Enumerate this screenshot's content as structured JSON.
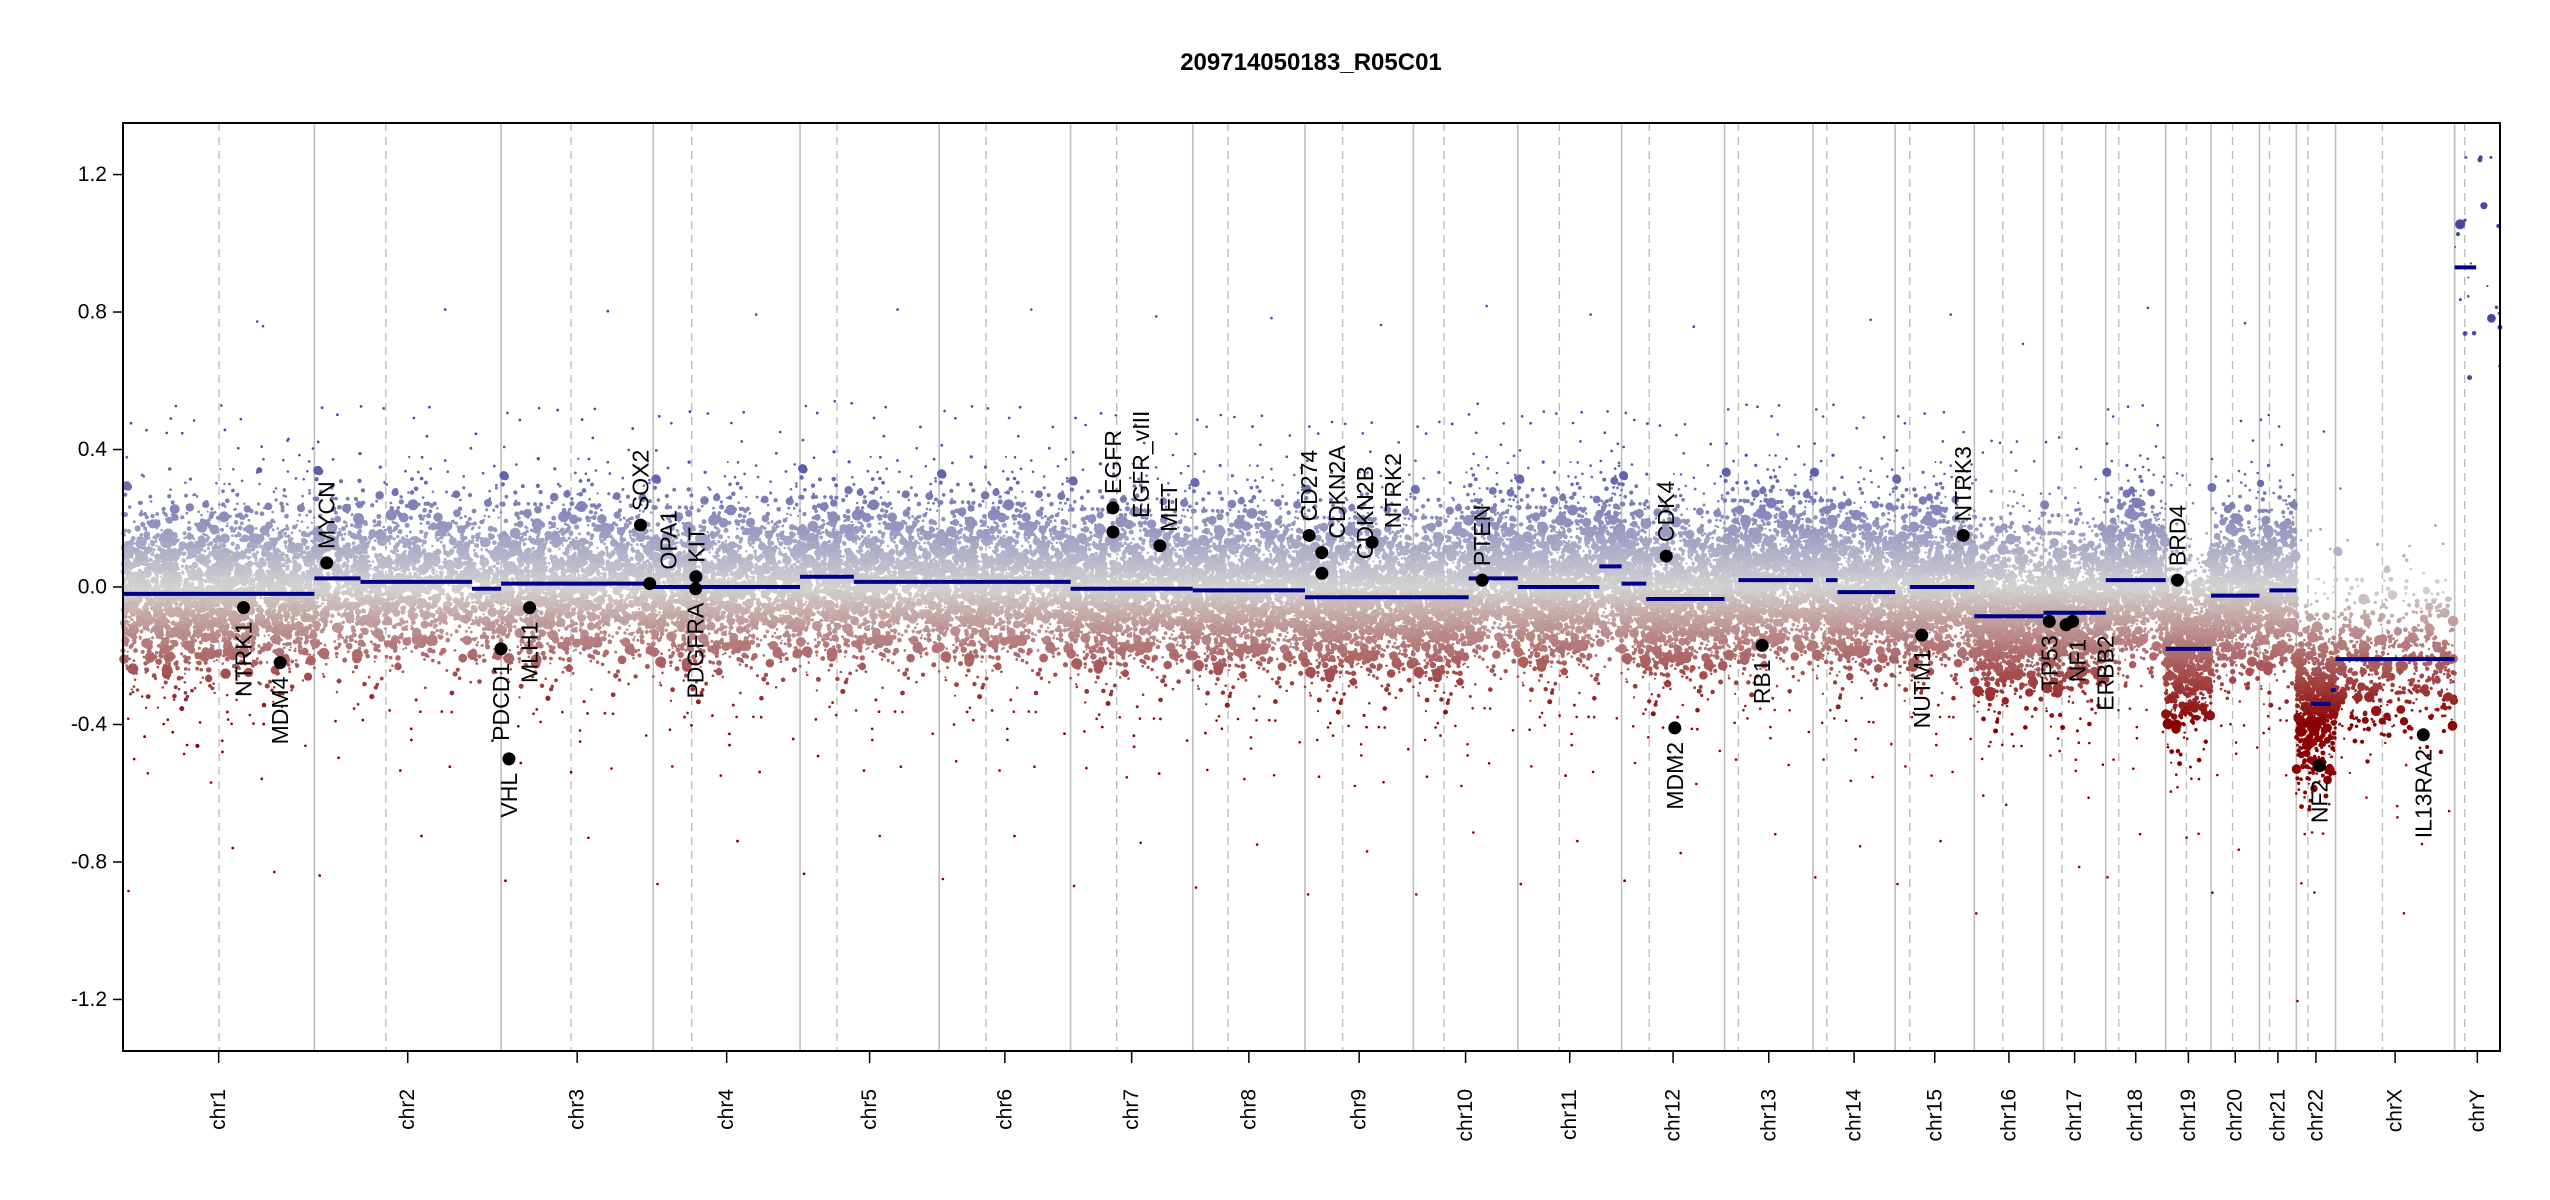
{
  "chart_data": {
    "type": "scatter",
    "title": "209714050183_R05C01",
    "xlabel": "",
    "ylabel": "",
    "ylim": [
      -1.35,
      1.35
    ],
    "yticks": [
      -1.2,
      -0.8,
      -0.4,
      0.0,
      0.4,
      0.8,
      1.2
    ],
    "ytick_labels": [
      "-1.2",
      "-0.8",
      "-0.4",
      "0.0",
      "0.4",
      "0.8",
      "1.2"
    ],
    "chromosomes": [
      {
        "name": "chr1",
        "length": 249,
        "centromere": 125
      },
      {
        "name": "chr2",
        "length": 243,
        "centromere": 93
      },
      {
        "name": "chr3",
        "length": 198,
        "centromere": 91
      },
      {
        "name": "chr4",
        "length": 191,
        "centromere": 50
      },
      {
        "name": "chr5",
        "length": 181,
        "centromere": 48
      },
      {
        "name": "chr6",
        "length": 171,
        "centromere": 61
      },
      {
        "name": "chr7",
        "length": 159,
        "centromere": 60
      },
      {
        "name": "chr8",
        "length": 146,
        "centromere": 46
      },
      {
        "name": "chr9",
        "length": 141,
        "centromere": 49
      },
      {
        "name": "chr10",
        "length": 136,
        "centromere": 40
      },
      {
        "name": "chr11",
        "length": 135,
        "centromere": 54
      },
      {
        "name": "chr12",
        "length": 134,
        "centromere": 36
      },
      {
        "name": "chr13",
        "length": 115,
        "centromere": 18
      },
      {
        "name": "chr14",
        "length": 107,
        "centromere": 18
      },
      {
        "name": "chr15",
        "length": 103,
        "centromere": 19
      },
      {
        "name": "chr16",
        "length": 90,
        "centromere": 37
      },
      {
        "name": "chr17",
        "length": 81,
        "centromere": 24
      },
      {
        "name": "chr18",
        "length": 78,
        "centromere": 17
      },
      {
        "name": "chr19",
        "length": 59,
        "centromere": 27
      },
      {
        "name": "chr20",
        "length": 63,
        "centromere": 28
      },
      {
        "name": "chr21",
        "length": 48,
        "centromere": 13
      },
      {
        "name": "chr22",
        "length": 51,
        "centromere": 15
      },
      {
        "name": "chrX",
        "length": 155,
        "centromere": 61
      },
      {
        "name": "chrY",
        "length": 59,
        "centromere": 13
      }
    ],
    "segments": [
      {
        "chrom": "chr1",
        "start": 0,
        "end": 249,
        "value": -0.02
      },
      {
        "chrom": "chr2",
        "start": 0,
        "end": 60,
        "value": 0.025
      },
      {
        "chrom": "chr2",
        "start": 60,
        "end": 205,
        "value": 0.015
      },
      {
        "chrom": "chr2",
        "start": 205,
        "end": 243,
        "value": -0.005
      },
      {
        "chrom": "chr3",
        "start": 0,
        "end": 198,
        "value": 0.01
      },
      {
        "chrom": "chr4",
        "start": 0,
        "end": 191,
        "value": 0.0
      },
      {
        "chrom": "chr5",
        "start": 0,
        "end": 70,
        "value": 0.03
      },
      {
        "chrom": "chr5",
        "start": 70,
        "end": 181,
        "value": 0.015
      },
      {
        "chrom": "chr6",
        "start": 0,
        "end": 171,
        "value": 0.015
      },
      {
        "chrom": "chr7",
        "start": 0,
        "end": 159,
        "value": -0.005
      },
      {
        "chrom": "chr8",
        "start": 0,
        "end": 146,
        "value": -0.01
      },
      {
        "chrom": "chr9",
        "start": 0,
        "end": 141,
        "value": -0.03
      },
      {
        "chrom": "chr10",
        "start": 0,
        "end": 72,
        "value": -0.03
      },
      {
        "chrom": "chr10",
        "start": 72,
        "end": 136,
        "value": 0.025
      },
      {
        "chrom": "chr11",
        "start": 0,
        "end": 106,
        "value": 0.0
      },
      {
        "chrom": "chr11",
        "start": 106,
        "end": 135,
        "value": 0.06
      },
      {
        "chrom": "chr12",
        "start": 0,
        "end": 32,
        "value": 0.01
      },
      {
        "chrom": "chr12",
        "start": 32,
        "end": 134,
        "value": -0.035
      },
      {
        "chrom": "chr13",
        "start": 18,
        "end": 115,
        "value": 0.02
      },
      {
        "chrom": "chr14",
        "start": 17,
        "end": 32,
        "value": 0.02
      },
      {
        "chrom": "chr14",
        "start": 32,
        "end": 107,
        "value": -0.015
      },
      {
        "chrom": "chr15",
        "start": 19,
        "end": 103,
        "value": 0.0
      },
      {
        "chrom": "chr16",
        "start": 0,
        "end": 90,
        "value": -0.085
      },
      {
        "chrom": "chr17",
        "start": 0,
        "end": 81,
        "value": -0.075
      },
      {
        "chrom": "chr18",
        "start": 0,
        "end": 78,
        "value": 0.02
      },
      {
        "chrom": "chr19",
        "start": 0,
        "end": 59,
        "value": -0.18
      },
      {
        "chrom": "chr20",
        "start": 0,
        "end": 63,
        "value": -0.025
      },
      {
        "chrom": "chr21",
        "start": 13,
        "end": 48,
        "value": -0.01
      },
      {
        "chrom": "chr22",
        "start": 19,
        "end": 45,
        "value": -0.34
      },
      {
        "chrom": "chr22",
        "start": 45,
        "end": 51,
        "value": -0.3
      },
      {
        "chrom": "chrX",
        "start": 0,
        "end": 155,
        "value": -0.21
      },
      {
        "chrom": "chrY",
        "start": 0,
        "end": 28,
        "value": 0.93
      }
    ],
    "genes": [
      {
        "name": "NTRK1",
        "chrom": "chr1",
        "pos": 156.8,
        "value": -0.06
      },
      {
        "name": "MDM4",
        "chrom": "chr1",
        "pos": 204.5,
        "value": -0.22
      },
      {
        "name": "MYCN",
        "chrom": "chr2",
        "pos": 16.1,
        "value": 0.07
      },
      {
        "name": "PDCD1",
        "chrom": "chr2",
        "pos": 242.8,
        "value": -0.18
      },
      {
        "name": "VHL",
        "chrom": "chr3",
        "pos": 10.2,
        "value": -0.5
      },
      {
        "name": "MLH1",
        "chrom": "chr3",
        "pos": 37.0,
        "value": -0.06
      },
      {
        "name": "SOX2",
        "chrom": "chr3",
        "pos": 181.4,
        "value": 0.18
      },
      {
        "name": "OPA1",
        "chrom": "chr3",
        "pos": 193.3,
        "value": 0.01
      },
      {
        "name": "KIT",
        "chrom": "chr4",
        "pos": 55.5,
        "value": 0.03
      },
      {
        "name": "PDGFRA",
        "chrom": "chr4",
        "pos": 55.1,
        "value": -0.005
      },
      {
        "name": "EGFR",
        "chrom": "chr7",
        "pos": 55.1,
        "value": 0.23
      },
      {
        "name": "EGFR_vIII",
        "chrom": "chr7",
        "pos": 55.2,
        "value": 0.16
      },
      {
        "name": "MET",
        "chrom": "chr7",
        "pos": 116.3,
        "value": 0.12
      },
      {
        "name": "CD274",
        "chrom": "chr9",
        "pos": 5.5,
        "value": 0.15
      },
      {
        "name": "CDKN2A",
        "chrom": "chr9",
        "pos": 21.9,
        "value": 0.1
      },
      {
        "name": "CDKN2B",
        "chrom": "chr9",
        "pos": 22.0,
        "value": 0.04
      },
      {
        "name": "NTRK2",
        "chrom": "chr9",
        "pos": 87.3,
        "value": 0.13
      },
      {
        "name": "PTEN",
        "chrom": "chr10",
        "pos": 89.6,
        "value": 0.02
      },
      {
        "name": "CDK4",
        "chrom": "chr12",
        "pos": 58.1,
        "value": 0.09
      },
      {
        "name": "MDM2",
        "chrom": "chr12",
        "pos": 69.2,
        "value": -0.41
      },
      {
        "name": "RB1",
        "chrom": "chr13",
        "pos": 48.9,
        "value": -0.17
      },
      {
        "name": "NUTM1",
        "chrom": "chr15",
        "pos": 34.6,
        "value": -0.14
      },
      {
        "name": "NTRK3",
        "chrom": "chr15",
        "pos": 88.5,
        "value": 0.15
      },
      {
        "name": "TP53",
        "chrom": "chr17",
        "pos": 7.5,
        "value": -0.1
      },
      {
        "name": "NF1",
        "chrom": "chr17",
        "pos": 29.4,
        "value": -0.11
      },
      {
        "name": "ERBB2",
        "chrom": "chr17",
        "pos": 37.8,
        "value": -0.1
      },
      {
        "name": "BRD4",
        "chrom": "chr19",
        "pos": 15.3,
        "value": 0.02
      },
      {
        "name": "NF2",
        "chrom": "chr22",
        "pos": 30.0,
        "value": -0.52
      },
      {
        "name": "IL13RA2",
        "chrom": "chrX",
        "pos": 114.2,
        "value": -0.43
      }
    ],
    "colors": {
      "segment": "#00008b",
      "gain": "#4848a8",
      "neutral": "#d3d3d3",
      "loss": "#8b0000",
      "boundary": "#bebebe",
      "gene_point": "#000000"
    }
  }
}
